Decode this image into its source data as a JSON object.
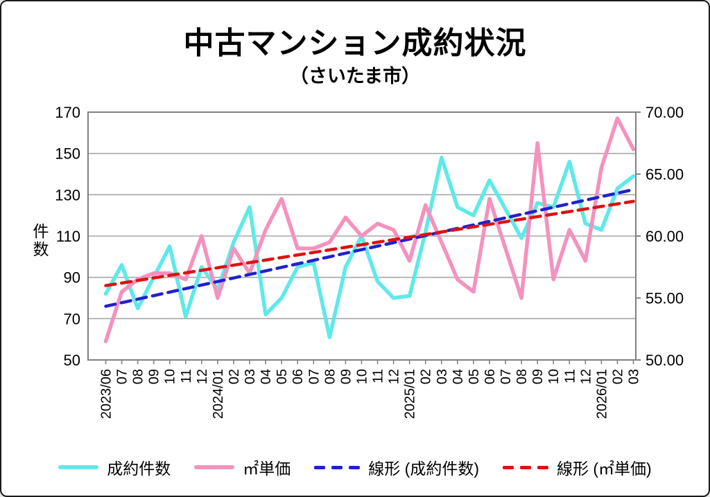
{
  "title": "中古マンション成約状況",
  "subtitle": "（さいたま市）",
  "chart_data": {
    "type": "line",
    "title": "中古マンション成約状況",
    "subtitle": "（さいたま市）",
    "grid": true,
    "legend_position": "bottom",
    "categories": [
      "2023/06",
      "07",
      "08",
      "09",
      "10",
      "11",
      "12",
      "2024/01",
      "02",
      "03",
      "04",
      "05",
      "06",
      "07",
      "08",
      "09",
      "10",
      "11",
      "12",
      "2025/01",
      "02",
      "03",
      "04",
      "05",
      "06",
      "07",
      "08",
      "09",
      "10",
      "11",
      "12",
      "2026/01",
      "02",
      "03"
    ],
    "axes": {
      "left": {
        "label": "件数",
        "min": 50,
        "max": 170,
        "ticks": [
          170,
          150,
          130,
          110,
          90,
          70,
          50
        ],
        "gridlines": [
          150,
          130,
          110,
          90,
          70
        ]
      },
      "right": {
        "min": 50,
        "max": 70,
        "ticks": [
          "70.00",
          "65.00",
          "60.00",
          "55.00",
          "50.00"
        ],
        "tick_values": [
          70,
          65,
          60,
          55,
          50
        ]
      }
    },
    "series": [
      {
        "name": "成約件数",
        "axis": "left",
        "style": "solid",
        "color": "#5FE9E9",
        "values": [
          82,
          96,
          75,
          90,
          105,
          71,
          95,
          84,
          107,
          124,
          72,
          80,
          95,
          97,
          61,
          95,
          110,
          88,
          80,
          81,
          112,
          148,
          124,
          120,
          137,
          123,
          109,
          126,
          124,
          146,
          116,
          113,
          133,
          139
        ]
      },
      {
        "name": "㎡単価",
        "axis": "right",
        "style": "solid",
        "color": "#F492BE",
        "values": [
          51.5,
          55.5,
          56.5,
          57,
          57,
          56.5,
          60,
          55,
          59,
          57,
          60.5,
          63,
          59,
          59,
          59.5,
          61.5,
          60,
          61,
          60.5,
          58,
          62.5,
          59.5,
          56.5,
          55.5,
          63,
          59,
          55,
          67.5,
          56.5,
          60.5,
          58,
          65.5,
          69.5,
          67
        ]
      },
      {
        "name": "線形 (成約件数)",
        "axis": "left",
        "style": "dashed",
        "color": "#2121CC",
        "trend_endpoints": [
          76,
          132.5
        ]
      },
      {
        "name": "線形 (㎡単価)",
        "axis": "right",
        "style": "dashed",
        "color": "#DF1111",
        "trend_endpoints": [
          56,
          62.8
        ]
      }
    ],
    "colors": {
      "gridline": "#A6A6A6",
      "plot_border": "#808080",
      "tick": "#808080",
      "text": "#000000"
    }
  }
}
